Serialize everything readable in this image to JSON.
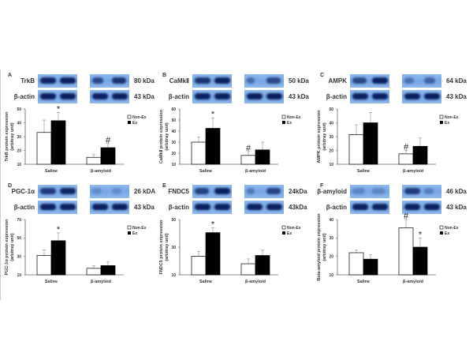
{
  "figure": {
    "legend": {
      "non_ex": "Non-Ex",
      "ex": "Ex"
    },
    "categories": [
      "Saline",
      "β-amyloid"
    ],
    "ylabel_unit": "(arbitray unit)"
  },
  "panels": [
    {
      "letter": "A",
      "protein": "TrkB",
      "kda": "80 kDa",
      "actin": "β-actin",
      "actin_kda": "43 kDa",
      "ylabel": "TrkB protein expression"
    },
    {
      "letter": "B",
      "protein": "CaMkⅡ",
      "kda": "50 kDa",
      "actin": "β-actin",
      "actin_kda": "43 kDa",
      "ylabel": "CaMkⅡ protein expression"
    },
    {
      "letter": "C",
      "protein": "AMPK",
      "kda": "64 kDa",
      "actin": "β-actin",
      "actin_kda": "43 kDa",
      "ylabel": "AMPK protein expression"
    },
    {
      "letter": "D",
      "protein": "PGC-1α",
      "kda": "26 kDA",
      "actin": "β-actin",
      "actin_kda": "43 kDa",
      "ylabel": "PGC-1α protein expression"
    },
    {
      "letter": "E",
      "protein": "FNDC5",
      "kda": "24kDa",
      "actin": "β-actin",
      "actin_kda": "43kDa",
      "ylabel": "FNDC5 protein expression"
    },
    {
      "letter": "F",
      "protein": "β-amyloid",
      "kda": "46 kDa",
      "actin": "β-actin",
      "actin_kda": "43 kDa",
      "ylabel": "Beta-amyloid protein expression"
    }
  ],
  "chart_data": [
    {
      "type": "bar",
      "title": "A TrkB",
      "categories": [
        "Saline",
        "β-amyloid"
      ],
      "ylabel": "TrkB protein expression (arbitray unit)",
      "ylim": [
        10,
        50
      ],
      "yticks": [
        10,
        20,
        30,
        40,
        50
      ],
      "series": [
        {
          "name": "Non-Ex",
          "values": [
            33,
            15
          ],
          "errors": [
            9,
            2
          ]
        },
        {
          "name": "Ex",
          "values": [
            41.5,
            22
          ],
          "errors": [
            6,
            3
          ]
        }
      ],
      "annotations": [
        {
          "text": "*",
          "category": "Saline",
          "series": "Ex"
        },
        {
          "text": "#",
          "category": "β-amyloid",
          "series": "Ex"
        }
      ],
      "legend_position": "upper right"
    },
    {
      "type": "bar",
      "title": "B CaMkⅡ",
      "categories": [
        "Saline",
        "β-amyloid"
      ],
      "ylabel": "CaMkⅡ protein expression (arbitray unit)",
      "ylim": [
        10,
        60
      ],
      "yticks": [
        10,
        20,
        30,
        40,
        50,
        60
      ],
      "series": [
        {
          "name": "Non-Ex",
          "values": [
            30,
            18
          ],
          "errors": [
            4.5,
            3.5
          ]
        },
        {
          "name": "Ex",
          "values": [
            42.5,
            23
          ],
          "errors": [
            9.5,
            7
          ]
        }
      ],
      "annotations": [
        {
          "text": "*",
          "category": "Saline",
          "series": "Ex"
        },
        {
          "text": "#",
          "category": "β-amyloid",
          "series": "Non-Ex"
        }
      ],
      "legend_position": "upper right"
    },
    {
      "type": "bar",
      "title": "C AMPK",
      "categories": [
        "Saline",
        "β-amyloid"
      ],
      "ylabel": "AMPK protein expression (arbitray unit)",
      "ylim": [
        10,
        50
      ],
      "yticks": [
        10,
        20,
        30,
        40,
        50
      ],
      "series": [
        {
          "name": "Non-Ex",
          "values": [
            31.5,
            17.5
          ],
          "errors": [
            7,
            2.5
          ]
        },
        {
          "name": "Ex",
          "values": [
            40,
            23
          ],
          "errors": [
            7.5,
            6
          ]
        }
      ],
      "annotations": [
        {
          "text": "#",
          "category": "β-amyloid",
          "series": "Non-Ex"
        }
      ],
      "legend_position": "upper right"
    },
    {
      "type": "bar",
      "title": "D PGC-1α",
      "categories": [
        "Saline",
        "β-amyloid"
      ],
      "ylabel": "PGC-1α protein expression (arbitray unit)",
      "ylim": [
        10,
        70
      ],
      "yticks": [
        10,
        30,
        50,
        70
      ],
      "series": [
        {
          "name": "Non-Ex",
          "values": [
            31,
            17
          ]
        },
        {
          "name": "Ex",
          "values": [
            47,
            20
          ]
        }
      ],
      "errors": {
        "Non-Ex": [
          6,
          3
        ],
        "Ex": [
          8.5,
          4
        ]
      },
      "annotations": [
        {
          "text": "*",
          "category": "Saline",
          "series": "Ex"
        }
      ],
      "legend_position": "upper right"
    },
    {
      "type": "bar",
      "title": "E FNDC5",
      "categories": [
        "Saline",
        "β-amyloid"
      ],
      "ylabel": "FNDC5 protein expression (arbitray unit)",
      "ylim": [
        10,
        50
      ],
      "yticks": [
        10,
        30,
        50
      ],
      "series": [
        {
          "name": "Non-Ex",
          "values": [
            23.5,
            18
          ],
          "errors": [
            3.5,
            3.5
          ]
        },
        {
          "name": "Ex",
          "values": [
            40.5,
            24
          ],
          "errors": [
            3.5,
            4
          ]
        }
      ],
      "annotations": [
        {
          "text": "*",
          "category": "Saline",
          "series": "Ex"
        }
      ],
      "legend_position": "upper right"
    },
    {
      "type": "bar",
      "title": "F β-amyloid",
      "categories": [
        "Saline",
        "β-amyloid"
      ],
      "ylabel": "Beta-amyloid protein expression (arbitray unit)",
      "ylim": [
        10,
        40
      ],
      "yticks": [
        10,
        20,
        30,
        40
      ],
      "series": [
        {
          "name": "Non-Ex",
          "values": [
            22,
            35.5
          ],
          "errors": [
            1.5,
            4.5
          ]
        },
        {
          "name": "Ex",
          "values": [
            18.5,
            25
          ],
          "errors": [
            2.5,
            5
          ]
        }
      ],
      "annotations": [
        {
          "text": "#",
          "category": "β-amyloid",
          "series": "Non-Ex"
        },
        {
          "text": "*",
          "category": "β-amyloid",
          "series": "Ex"
        }
      ],
      "legend_position": "upper right"
    }
  ]
}
